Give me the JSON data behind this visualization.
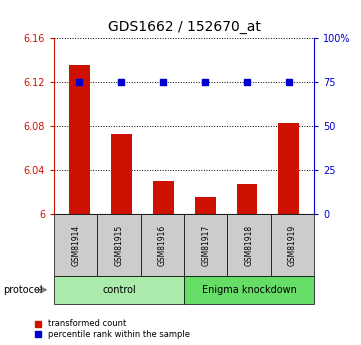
{
  "title": "GDS1662 / 152670_at",
  "samples": [
    "GSM81914",
    "GSM81915",
    "GSM81916",
    "GSM81917",
    "GSM81918",
    "GSM81919"
  ],
  "red_values": [
    6.135,
    6.073,
    6.03,
    6.015,
    6.027,
    6.083
  ],
  "blue_values": [
    6.12,
    6.12,
    6.12,
    6.12,
    6.12,
    6.12
  ],
  "ylim_left": [
    6.0,
    6.16
  ],
  "ylim_right": [
    0,
    100
  ],
  "yticks_left": [
    6.0,
    6.04,
    6.08,
    6.12,
    6.16
  ],
  "yticks_right": [
    0,
    25,
    50,
    75,
    100
  ],
  "ytick_labels_left": [
    "6",
    "6.04",
    "6.08",
    "6.12",
    "6.16"
  ],
  "ytick_labels_right": [
    "0",
    "25",
    "50",
    "75",
    "100%"
  ],
  "groups": [
    {
      "label": "control",
      "start": 0,
      "end": 2,
      "color": "#aaeaaa"
    },
    {
      "label": "Enigma knockdown",
      "start": 3,
      "end": 5,
      "color": "#66dd66"
    }
  ],
  "bar_color": "#cc1100",
  "dot_color": "#0000cc",
  "bar_bottom": 6.0,
  "legend_red_label": "transformed count",
  "legend_blue_label": "percentile rank within the sample",
  "protocol_label": "protocol",
  "figsize": [
    3.61,
    3.45
  ],
  "dpi": 100
}
